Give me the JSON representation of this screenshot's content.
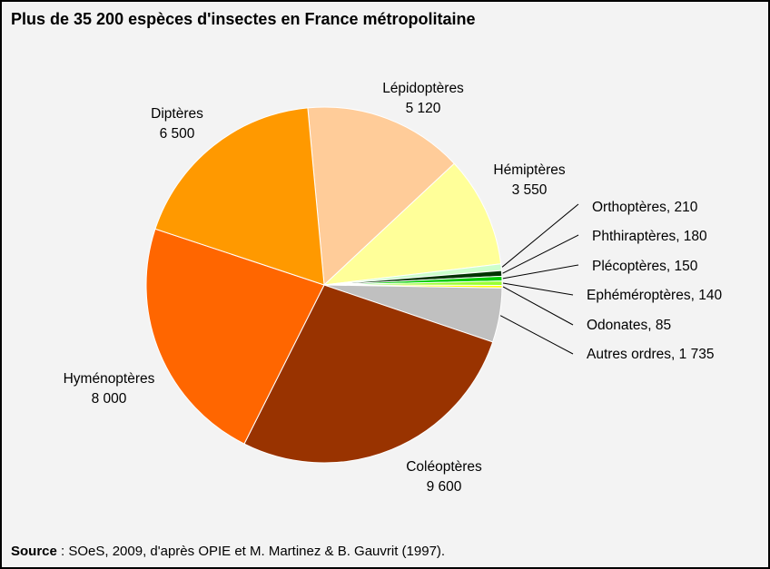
{
  "title": "Plus de 35 200 espèces d'insectes en France métropolitaine",
  "source": {
    "label": "Source",
    "text": " : SOeS, 2009, d'après OPIE et M. Martinez & B. Gauvrit (1997)."
  },
  "chart_data": {
    "type": "pie",
    "title": "Plus de 35 200 espèces d'insectes en France métropolitaine",
    "start_angle_deg": -95.3,
    "direction": "clockwise",
    "slices": [
      {
        "name": "Lépidoptères",
        "value": 5120,
        "value_label": "5 120",
        "color": "#ffcc99",
        "label_style": "inside"
      },
      {
        "name": "Hémiptères",
        "value": 3550,
        "value_label": "3 550",
        "color": "#ffff99",
        "label_style": "inside"
      },
      {
        "name": "Orthoptères",
        "value": 210,
        "value_label": "210",
        "color": "#ccffcc",
        "label_style": "leader"
      },
      {
        "name": "Phthiraptères",
        "value": 180,
        "value_label": "180",
        "color": "#003300",
        "label_style": "leader"
      },
      {
        "name": "Plécoptères",
        "value": 150,
        "value_label": "150",
        "color": "#00cc00",
        "label_style": "leader"
      },
      {
        "name": "Ephéméroptères",
        "value": 140,
        "value_label": "140",
        "color": "#99ff33",
        "label_style": "leader"
      },
      {
        "name": "Odonates",
        "value": 85,
        "value_label": "85",
        "color": "#ffff00",
        "label_style": "leader"
      },
      {
        "name": "Autres ordres",
        "value": 1735,
        "value_label": "1 735",
        "color": "#c0c0c0",
        "label_style": "leader"
      },
      {
        "name": "Coléoptères",
        "value": 9600,
        "value_label": "9 600",
        "color": "#993300",
        "label_style": "inside"
      },
      {
        "name": "Hyménoptères",
        "value": 8000,
        "value_label": "8 000",
        "color": "#ff6600",
        "label_style": "inside"
      },
      {
        "name": "Diptères",
        "value": 6500,
        "value_label": "6 500",
        "color": "#ff9900",
        "label_style": "inside"
      }
    ]
  }
}
